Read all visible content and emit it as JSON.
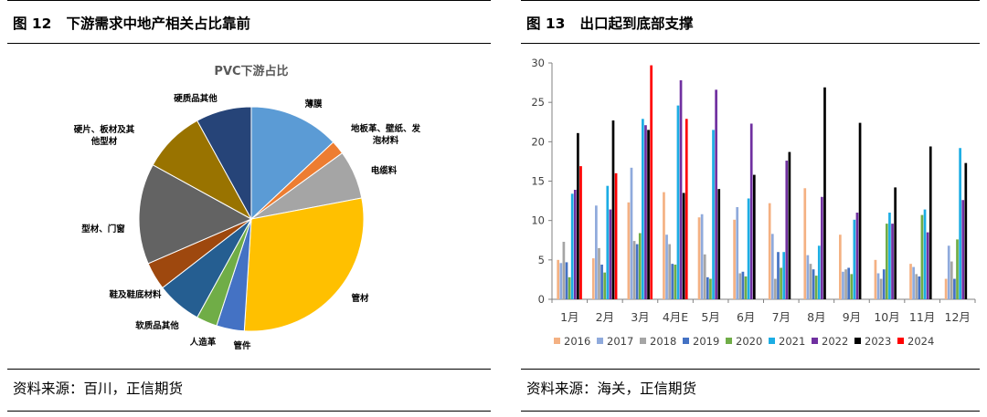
{
  "left": {
    "fig_no": "图 12",
    "fig_title": "下游需求中地产相关占比靠前",
    "source": "资料来源：百川，正信期货",
    "chart_data": {
      "type": "pie",
      "title": "PVC下游占比",
      "slices": [
        {
          "label": "薄膜",
          "value": 13,
          "color": "#5B9BD5"
        },
        {
          "label": "地板革、壁纸、发泡材料",
          "value": 2,
          "color": "#ED7D31"
        },
        {
          "label": "电缆料",
          "value": 7,
          "color": "#A5A5A5"
        },
        {
          "label": "管材",
          "value": 29,
          "color": "#FFC000"
        },
        {
          "label": "管件",
          "value": 4,
          "color": "#4472C4"
        },
        {
          "label": "人造革",
          "value": 3,
          "color": "#70AD47"
        },
        {
          "label": "软质品其他",
          "value": 6.5,
          "color": "#255E91"
        },
        {
          "label": "鞋及鞋底材料",
          "value": 4,
          "color": "#9E480E"
        },
        {
          "label": "型材、门窗",
          "value": 14.5,
          "color": "#636363"
        },
        {
          "label": "硬片、板材及其他型材",
          "value": 9,
          "color": "#997300"
        },
        {
          "label": "硬质品其他",
          "value": 8,
          "color": "#264478"
        }
      ]
    }
  },
  "right": {
    "fig_no": "图 13",
    "fig_title": "出口起到底部支撑",
    "source": "资料来源：海关，正信期货",
    "chart_data": {
      "type": "bar",
      "categories": [
        "1月",
        "2月",
        "3月",
        "4月E",
        "5月",
        "6月",
        "7月",
        "8月",
        "9月",
        "10月",
        "11月",
        "12月"
      ],
      "ylim": [
        0,
        30
      ],
      "yticks": [
        0,
        5,
        10,
        15,
        20,
        25,
        30
      ],
      "series": [
        {
          "name": "2016",
          "color": "#F4B183",
          "values": [
            5,
            5.2,
            12.3,
            13.6,
            10.4,
            10.1,
            12.2,
            14.1,
            8.2,
            5,
            4.5,
            2.6
          ]
        },
        {
          "name": "2017",
          "color": "#8FAADC",
          "values": [
            4.6,
            11.9,
            16.7,
            8.2,
            10.8,
            11.7,
            8.3,
            5.6,
            3.5,
            3.3,
            4.1,
            6.8
          ]
        },
        {
          "name": "2018",
          "color": "#A5A5A5",
          "values": [
            7.3,
            6.5,
            7.4,
            7,
            5.7,
            3.3,
            2.6,
            4.5,
            3.8,
            2.6,
            3.2,
            4.8
          ]
        },
        {
          "name": "2019",
          "color": "#4472C4",
          "values": [
            4.7,
            4.4,
            7,
            4.5,
            2.8,
            3.5,
            6,
            3.8,
            4,
            3.8,
            2.9,
            2.6
          ]
        },
        {
          "name": "2020",
          "color": "#70AD47",
          "values": [
            2.8,
            3.4,
            8.4,
            4.4,
            2.6,
            2.9,
            4,
            3,
            3.2,
            9.6,
            10.7,
            7.6
          ]
        },
        {
          "name": "2021",
          "color": "#1CADE4",
          "values": [
            13.4,
            14.4,
            22.9,
            24.6,
            21.5,
            12.8,
            6,
            6.8,
            10.1,
            11,
            11.4,
            19.2
          ]
        },
        {
          "name": "2022",
          "color": "#7030A0",
          "values": [
            13.9,
            11.4,
            22.1,
            27.8,
            26.6,
            22.3,
            17.6,
            13,
            11,
            9.6,
            8.5,
            12.6
          ]
        },
        {
          "name": "2023",
          "color": "#000000",
          "values": [
            21.1,
            22.7,
            21.5,
            13.5,
            14,
            15.8,
            18.7,
            26.9,
            22.4,
            14.2,
            19.4,
            17.3
          ]
        },
        {
          "name": "2024",
          "color": "#FF0000",
          "values": [
            16.9,
            16,
            29.7,
            22.9,
            null,
            null,
            null,
            null,
            null,
            null,
            null,
            null
          ]
        }
      ]
    }
  }
}
